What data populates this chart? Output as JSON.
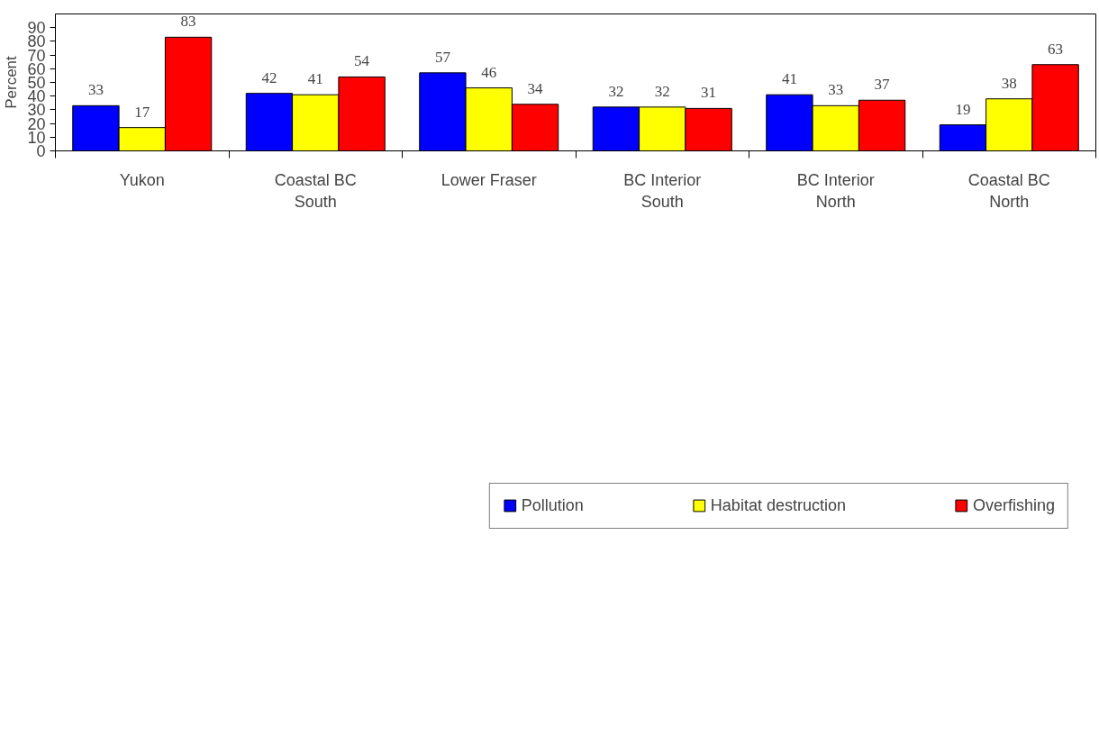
{
  "chart_data": {
    "type": "bar",
    "ylabel": "Percent",
    "categories": [
      "Yukon",
      "Coastal BC South",
      "Lower Fraser",
      "BC Interior South",
      "BC Interior North",
      "Coastal BC North"
    ],
    "series": [
      {
        "name": "Pollution",
        "color": "#0000ff",
        "values": [
          33,
          42,
          57,
          32,
          41,
          19
        ]
      },
      {
        "name": "Habitat destruction",
        "color": "#ffff00",
        "values": [
          17,
          41,
          46,
          32,
          33,
          38
        ]
      },
      {
        "name": "Overfishing",
        "color": "#ff0000",
        "values": [
          83,
          54,
          34,
          31,
          37,
          63
        ]
      }
    ],
    "ylim": [
      0,
      100
    ],
    "yticks": [
      0,
      10,
      20,
      30,
      40,
      50,
      60,
      70,
      80,
      90
    ],
    "data_labels": true,
    "grid": false,
    "legend": "bottom"
  }
}
